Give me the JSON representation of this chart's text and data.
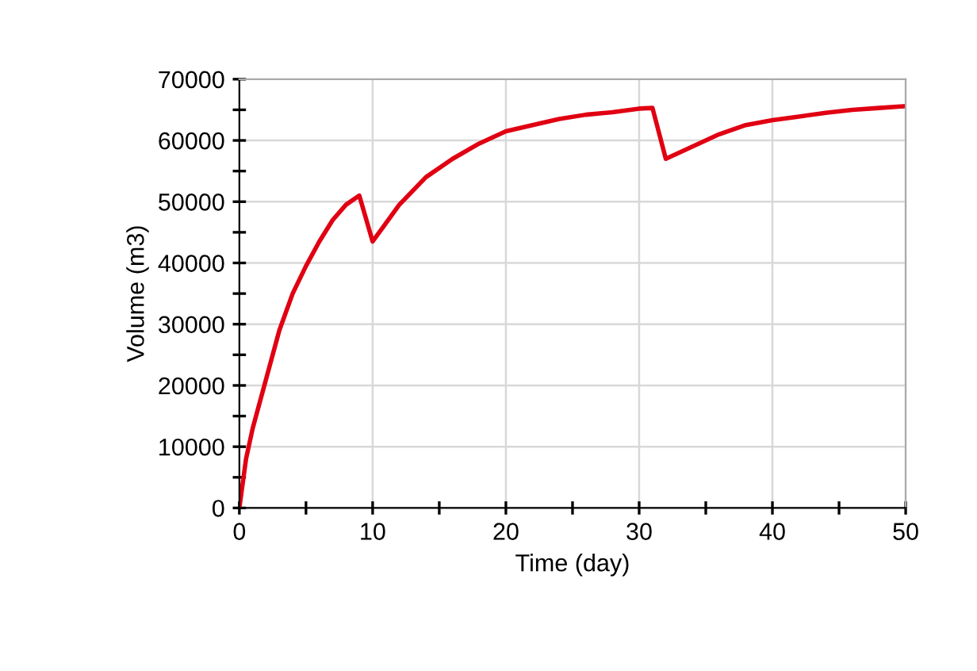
{
  "chart_data": {
    "type": "line",
    "xlabel": "Time (day)",
    "ylabel": "Volume (m3)",
    "x": [
      0,
      0.5,
      1,
      2,
      3,
      4,
      5,
      6,
      7,
      8,
      9,
      10,
      11,
      12,
      14,
      16,
      18,
      20,
      22,
      24,
      26,
      28,
      30,
      31,
      32,
      34,
      36,
      38,
      40,
      42,
      44,
      46,
      48,
      50
    ],
    "series": [
      {
        "color": "#e00012",
        "values": [
          0,
          8000,
          13000,
          21000,
          29000,
          35000,
          39500,
          43500,
          47000,
          49500,
          51000,
          43500,
          46500,
          49500,
          54000,
          57000,
          59500,
          61500,
          62500,
          63500,
          64200,
          64600,
          65200,
          65300,
          57000,
          59000,
          61000,
          62500,
          63300,
          63900,
          64500,
          65000,
          65300,
          65600
        ]
      }
    ],
    "xlim": [
      0,
      50
    ],
    "xticks": [
      0,
      {
        "value": 5,
        "label": null
      },
      10,
      {
        "value": 15,
        "label": null
      },
      20,
      {
        "value": 25,
        "label": null
      },
      30,
      {
        "value": 35,
        "label": null
      },
      40,
      {
        "value": 45,
        "label": null
      },
      50
    ],
    "ylim": [
      0,
      70000
    ],
    "yticks": [
      0,
      {
        "value": 5000,
        "label": null
      },
      10000,
      {
        "value": 15000,
        "label": null
      },
      20000,
      {
        "value": 25000,
        "label": null
      },
      30000,
      {
        "value": 35000,
        "label": null
      },
      40000,
      {
        "value": 45000,
        "label": null
      },
      50000,
      {
        "value": 55000,
        "label": null
      },
      60000,
      {
        "value": 65000,
        "label": null
      },
      70000
    ],
    "grid": true,
    "legend": false,
    "marker": "none",
    "line_style": "solid"
  }
}
